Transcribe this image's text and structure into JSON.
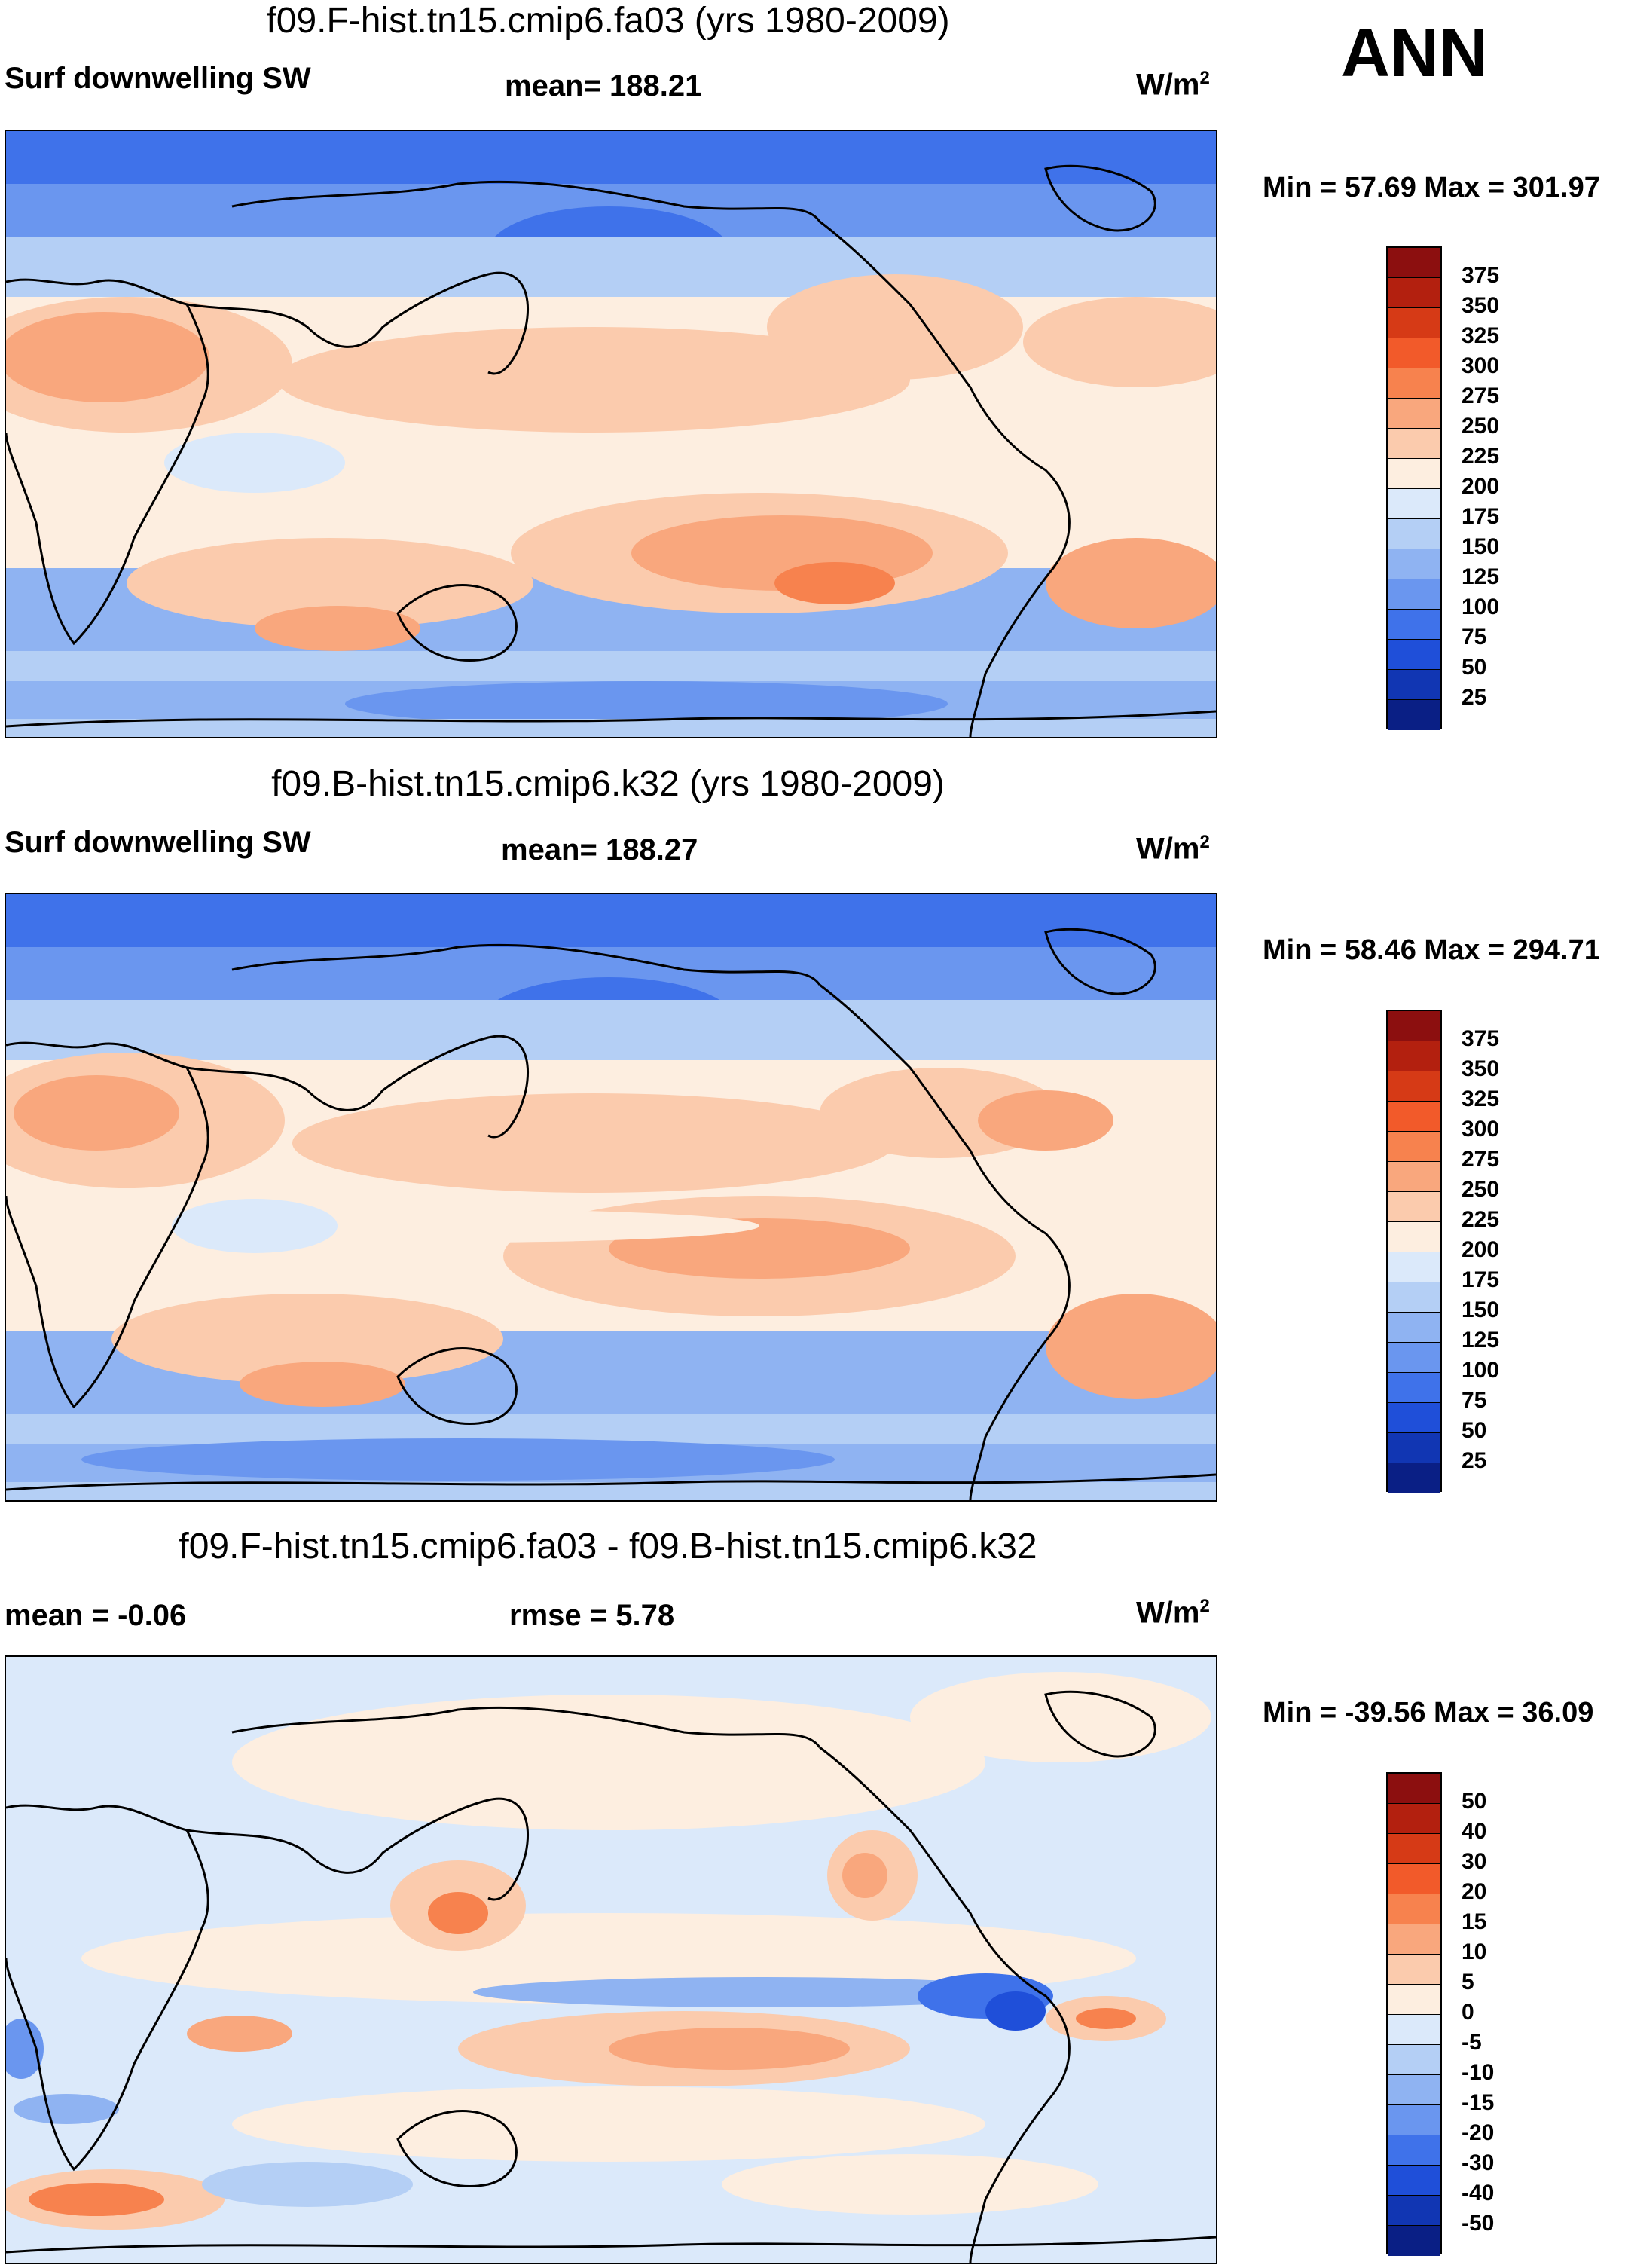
{
  "season": "ANN",
  "panels": [
    {
      "title": "f09.F-hist.tn15.cmip6.fa03 (yrs 1980-2009)",
      "left_label": "Surf downwelling SW",
      "center_label": "mean= 188.21",
      "units_base": "W/m",
      "units_exp": "2",
      "minmax": "Min =  57.69 Max = 301.97",
      "colorbar": {
        "ticks": [
          "375",
          "350",
          "325",
          "300",
          "275",
          "250",
          "225",
          "200",
          "175",
          "150",
          "125",
          "100",
          "75",
          "50",
          "25"
        ],
        "colors": [
          "#8c0f0f",
          "#b3200f",
          "#d63a16",
          "#f25a2a",
          "#f7824e",
          "#f9a77d",
          "#fbcbad",
          "#fdeee0",
          "#dbe9fa",
          "#b4cff5",
          "#8fb3f2",
          "#6a96ef",
          "#3f72ea",
          "#1f4fd9",
          "#1136b3",
          "#0a1f85"
        ]
      },
      "map_style": "abs"
    },
    {
      "title": "f09.B-hist.tn15.cmip6.k32 (yrs 1980-2009)",
      "left_label": "Surf downwelling SW",
      "center_label": "mean= 188.27",
      "units_base": "W/m",
      "units_exp": "2",
      "minmax": "Min =  58.46 Max = 294.71",
      "colorbar": {
        "ticks": [
          "375",
          "350",
          "325",
          "300",
          "275",
          "250",
          "225",
          "200",
          "175",
          "150",
          "125",
          "100",
          "75",
          "50",
          "25"
        ],
        "colors": [
          "#8c0f0f",
          "#b3200f",
          "#d63a16",
          "#f25a2a",
          "#f7824e",
          "#f9a77d",
          "#fbcbad",
          "#fdeee0",
          "#dbe9fa",
          "#b4cff5",
          "#8fb3f2",
          "#6a96ef",
          "#3f72ea",
          "#1f4fd9",
          "#1136b3",
          "#0a1f85"
        ]
      },
      "map_style": "abs"
    },
    {
      "title": "f09.F-hist.tn15.cmip6.fa03 - f09.B-hist.tn15.cmip6.k32",
      "left_label": "mean =  -0.06",
      "center_label": "rmse =   5.78",
      "units_base": "W/m",
      "units_exp": "2",
      "minmax": "Min = -39.56 Max =  36.09",
      "colorbar": {
        "ticks": [
          "50",
          "40",
          "30",
          "20",
          "15",
          "10",
          "5",
          "0",
          "-5",
          "-10",
          "-15",
          "-20",
          "-30",
          "-40",
          "-50"
        ],
        "colors": [
          "#8c0f0f",
          "#b3200f",
          "#d63a16",
          "#f25a2a",
          "#f7824e",
          "#f9a77d",
          "#fbcbad",
          "#fdeee0",
          "#dbe9fa",
          "#b4cff5",
          "#8fb3f2",
          "#6a96ef",
          "#3f72ea",
          "#1f4fd9",
          "#1136b3",
          "#0a1f85"
        ]
      },
      "map_style": "diff"
    }
  ]
}
